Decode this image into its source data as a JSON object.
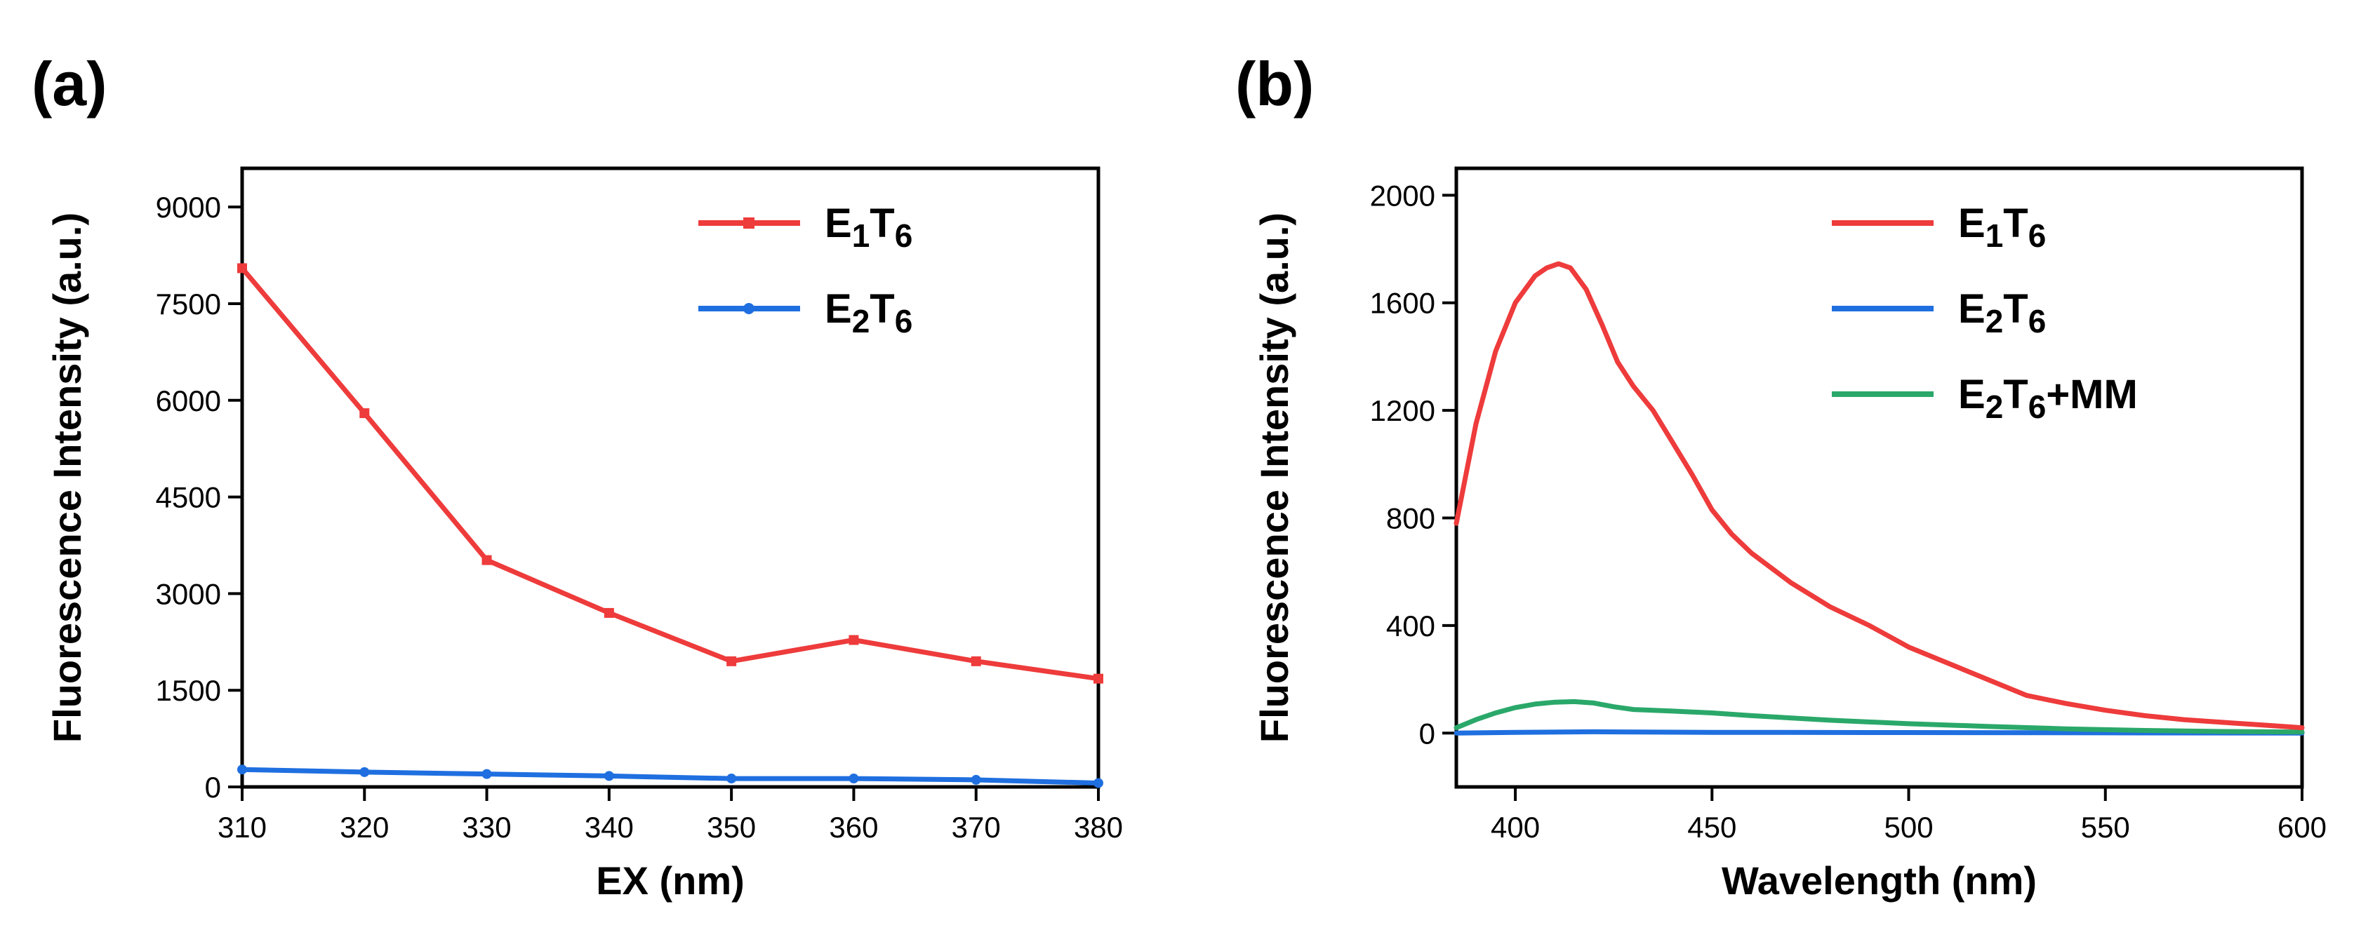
{
  "chart_data": [
    {
      "panel_label": "(a)",
      "type": "line",
      "xlabel": "EX (nm)",
      "ylabel": "Fluorescence Intensity (a.u.)",
      "xlim": [
        310,
        380
      ],
      "ylim": [
        0,
        9600
      ],
      "xticks": [
        310,
        320,
        330,
        340,
        350,
        360,
        370,
        380
      ],
      "yticks": [
        0,
        1500,
        3000,
        4500,
        6000,
        7500,
        9000
      ],
      "markers": true,
      "legend_position": "top-right",
      "series": [
        {
          "name_parts": [
            "E",
            "1",
            "T",
            "6"
          ],
          "color": "#ee3b3b",
          "marker_shape": "square",
          "x": [
            310,
            320,
            330,
            340,
            350,
            360,
            370,
            380
          ],
          "y": [
            8050,
            5800,
            3520,
            2700,
            1950,
            2280,
            1950,
            1680
          ]
        },
        {
          "name_parts": [
            "E",
            "2",
            "T",
            "6"
          ],
          "color": "#1f6fe0",
          "marker_shape": "circle",
          "x": [
            310,
            320,
            330,
            340,
            350,
            360,
            370,
            380
          ],
          "y": [
            270,
            230,
            200,
            170,
            130,
            130,
            110,
            60
          ]
        }
      ]
    },
    {
      "panel_label": "(b)",
      "type": "line",
      "xlabel": "Wavelength (nm)",
      "ylabel": "Fluorescence Intensity (a.u.)",
      "xlim": [
        385,
        600
      ],
      "ylim": [
        -200,
        2100
      ],
      "xticks": [
        400,
        450,
        500,
        550,
        600
      ],
      "yticks": [
        0,
        400,
        800,
        1200,
        1600,
        2000
      ],
      "markers": false,
      "legend_position": "top-right",
      "series": [
        {
          "name_parts": [
            "E",
            "2",
            "T",
            "6"
          ],
          "color": "#1f6fe0",
          "x": [
            385,
            400,
            420,
            450,
            500,
            550,
            600
          ],
          "y": [
            0,
            3,
            5,
            3,
            2,
            1,
            0
          ]
        },
        {
          "name_parts": [
            "E",
            "2",
            "T",
            "6",
            "+MM"
          ],
          "color": "#2aa86a",
          "x": [
            385,
            390,
            395,
            400,
            405,
            410,
            415,
            420,
            425,
            430,
            440,
            450,
            460,
            480,
            500,
            520,
            540,
            560,
            580,
            600
          ],
          "y": [
            20,
            50,
            75,
            95,
            108,
            115,
            117,
            112,
            98,
            88,
            82,
            75,
            65,
            48,
            35,
            25,
            16,
            10,
            6,
            4
          ]
        },
        {
          "name_parts": [
            "E",
            "1",
            "T",
            "6"
          ],
          "color": "#ee3b3b",
          "x": [
            385,
            390,
            395,
            400,
            405,
            408,
            411,
            414,
            418,
            422,
            426,
            430,
            435,
            440,
            445,
            450,
            455,
            460,
            470,
            480,
            490,
            500,
            510,
            520,
            530,
            540,
            550,
            560,
            570,
            580,
            590,
            600
          ],
          "y": [
            780,
            1150,
            1420,
            1600,
            1700,
            1730,
            1745,
            1730,
            1650,
            1520,
            1380,
            1290,
            1200,
            1080,
            960,
            830,
            740,
            670,
            560,
            470,
            400,
            320,
            260,
            200,
            140,
            110,
            85,
            65,
            50,
            40,
            30,
            20
          ]
        }
      ],
      "legend_order": [
        2,
        0,
        1
      ]
    }
  ]
}
